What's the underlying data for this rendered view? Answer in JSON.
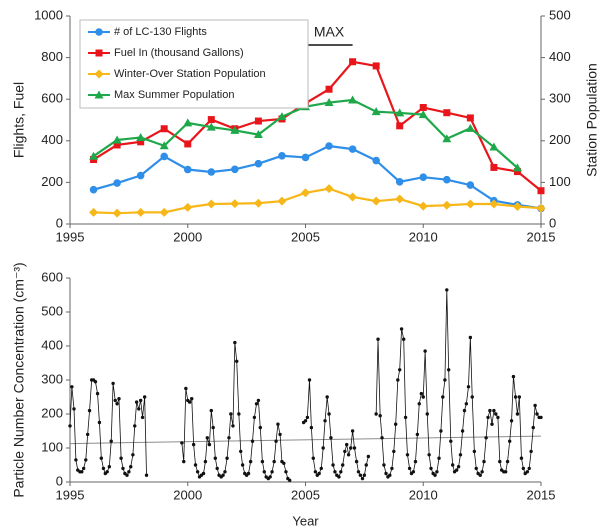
{
  "chart_data": [
    {
      "type": "line",
      "x": [
        1996,
        1997,
        1998,
        1999,
        2000,
        2001,
        2002,
        2003,
        2004,
        2005,
        2006,
        2007,
        2008,
        2009,
        2010,
        2011,
        2012,
        2013,
        2014,
        2015
      ],
      "xlim": [
        1995,
        2015
      ],
      "xticks": [
        1995,
        2000,
        2005,
        2010,
        2015
      ],
      "ylim": [
        0,
        1000
      ],
      "yticks": [
        0,
        200,
        400,
        600,
        800,
        1000
      ],
      "y2lim": [
        0,
        500
      ],
      "y2ticks": [
        0,
        100,
        200,
        300,
        400,
        500
      ],
      "ylabel": "Flights, Fuel",
      "y2label": "Station Population",
      "legend": "upper left",
      "annotations": [
        {
          "text": "MAX",
          "x": [
            2005,
            2007
          ]
        }
      ],
      "series": [
        {
          "name": "# of LC-130 Flights",
          "color": "#2e8ee8",
          "marker": "circle",
          "values": [
            165,
            197,
            233,
            325,
            262,
            250,
            263,
            290,
            328,
            320,
            375,
            360,
            305,
            203,
            225,
            213,
            187,
            112,
            92,
            75
          ]
        },
        {
          "name": "Fuel In (thousand Gallons)",
          "color": "#e8161b",
          "marker": "square",
          "values": [
            310,
            380,
            395,
            458,
            385,
            502,
            458,
            495,
            505,
            580,
            648,
            780,
            760,
            472,
            560,
            535,
            510,
            272,
            252,
            160
          ]
        },
        {
          "name": "Winter-Over Station Population",
          "color": "#f7b718",
          "marker": "diamond",
          "axis": "y2",
          "values": [
            28,
            26,
            28,
            28,
            40,
            48,
            49,
            50,
            55,
            75,
            85,
            65,
            55,
            60,
            43,
            45,
            48,
            48,
            42,
            38
          ]
        },
        {
          "name": "Max Summer Population",
          "color": "#1ea84a",
          "marker": "triangle",
          "axis": "y2",
          "values": [
            163,
            202,
            208,
            188,
            243,
            233,
            225,
            215,
            258,
            282,
            292,
            298,
            270,
            267,
            263,
            205,
            230,
            185,
            135,
            null
          ]
        }
      ]
    },
    {
      "type": "line",
      "xlim": [
        1995,
        2015
      ],
      "xticks": [
        1995,
        2000,
        2005,
        2010,
        2015
      ],
      "ylim": [
        0,
        600
      ],
      "yticks": [
        0,
        100,
        200,
        300,
        400,
        500,
        600
      ],
      "xlabel": "Year",
      "ylabel": "Particle Number Concentration (cm⁻³)",
      "x": [
        1995,
        1995.08,
        1995.17,
        1995.25,
        1995.33,
        1995.42,
        1995.5,
        1995.58,
        1995.67,
        1995.75,
        1995.83,
        1995.92,
        1996,
        1996.08,
        1996.17,
        1996.25,
        1996.33,
        1996.42,
        1996.5,
        1996.58,
        1996.67,
        1996.75,
        1996.83,
        1996.92,
        1997,
        1997.08,
        1997.17,
        1997.25,
        1997.33,
        1997.42,
        1997.5,
        1997.58,
        1997.67,
        1997.75,
        1997.83,
        1997.92,
        1998,
        1998.08,
        1998.17,
        1998.25,
        1998.33,
        1998.42,
        1998.5,
        1998.58,
        1998.67,
        1998.75,
        1998.83,
        1998.92,
        1999,
        1999.08,
        1999.17,
        1999.25,
        1999.33,
        1999.42,
        1999.5,
        1999.58,
        1999.67,
        1999.75,
        1999.83,
        1999.92,
        2000,
        2000.08,
        2000.17,
        2000.25,
        2000.33,
        2000.42,
        2000.5,
        2000.58,
        2000.67,
        2000.75,
        2000.83,
        2000.92,
        2001,
        2001.08,
        2001.17,
        2001.25,
        2001.33,
        2001.42,
        2001.5,
        2001.58,
        2001.67,
        2001.75,
        2001.83,
        2001.92,
        2002,
        2002.08,
        2002.17,
        2002.25,
        2002.33,
        2002.42,
        2002.5,
        2002.58,
        2002.67,
        2002.75,
        2002.83,
        2002.92,
        2003,
        2003.08,
        2003.17,
        2003.25,
        2003.33,
        2003.42,
        2003.5,
        2003.58,
        2003.67,
        2003.75,
        2003.83,
        2003.92,
        2004,
        2004.08,
        2004.17,
        2004.25,
        2004.33,
        2004.42,
        2004.5,
        2004.58,
        2004.67,
        2004.75,
        2004.83,
        2004.92,
        2005,
        2005.08,
        2005.17,
        2005.25,
        2005.33,
        2005.42,
        2005.5,
        2005.58,
        2005.67,
        2005.75,
        2005.83,
        2005.92,
        2006,
        2006.08,
        2006.17,
        2006.25,
        2006.33,
        2006.42,
        2006.5,
        2006.58,
        2006.67,
        2006.75,
        2006.83,
        2006.92,
        2007,
        2007.08,
        2007.17,
        2007.25,
        2007.33,
        2007.42,
        2007.5,
        2007.58,
        2007.67,
        2007.75,
        2007.83,
        2007.92,
        2008,
        2008.08,
        2008.17,
        2008.25,
        2008.33,
        2008.42,
        2008.5,
        2008.58,
        2008.67,
        2008.75,
        2008.83,
        2008.92,
        2009,
        2009.08,
        2009.17,
        2009.25,
        2009.33,
        2009.42,
        2009.5,
        2009.58,
        2009.67,
        2009.75,
        2009.83,
        2009.92,
        2010,
        2010.08,
        2010.17,
        2010.25,
        2010.33,
        2010.42,
        2010.5,
        2010.58,
        2010.67,
        2010.75,
        2010.83,
        2010.92,
        2011,
        2011.08,
        2011.17,
        2011.25,
        2011.33,
        2011.42,
        2011.5,
        2011.58,
        2011.67,
        2011.75,
        2011.83,
        2011.92,
        2012,
        2012.08,
        2012.17,
        2012.25,
        2012.33,
        2012.42,
        2012.5,
        2012.58,
        2012.67,
        2012.75,
        2012.83,
        2012.92,
        2013,
        2013.08,
        2013.17,
        2013.25,
        2013.33,
        2013.42,
        2013.5,
        2013.58,
        2013.67,
        2013.75,
        2013.83,
        2013.92,
        2014,
        2014.08,
        2014.17,
        2014.25,
        2014.33,
        2014.42,
        2014.5,
        2014.58,
        2014.67,
        2014.75,
        2014.83,
        2014.92,
        2015
      ],
      "series": [
        {
          "color": "#111111",
          "marker": "dot",
          "values": [
            165,
            280,
            215,
            65,
            35,
            30,
            30,
            40,
            65,
            140,
            210,
            300,
            300,
            295,
            260,
            175,
            70,
            40,
            25,
            30,
            45,
            120,
            290,
            240,
            230,
            245,
            70,
            40,
            25,
            20,
            30,
            45,
            80,
            165,
            235,
            215,
            240,
            190,
            250,
            20,
            null,
            null,
            null,
            null,
            null,
            null,
            null,
            null,
            null,
            null,
            null,
            null,
            null,
            null,
            null,
            null,
            null,
            115,
            60,
            275,
            240,
            235,
            245,
            110,
            50,
            30,
            15,
            20,
            25,
            60,
            130,
            110,
            210,
            160,
            70,
            40,
            20,
            15,
            20,
            30,
            70,
            130,
            200,
            165,
            410,
            355,
            200,
            90,
            50,
            25,
            20,
            25,
            60,
            120,
            190,
            230,
            240,
            160,
            60,
            30,
            15,
            10,
            15,
            30,
            60,
            120,
            170,
            140,
            60,
            55,
            30,
            10,
            5,
            null,
            null,
            null,
            null,
            null,
            null,
            175,
            180,
            190,
            300,
            160,
            70,
            30,
            20,
            25,
            40,
            100,
            180,
            250,
            200,
            130,
            50,
            30,
            20,
            15,
            30,
            50,
            90,
            110,
            80,
            100,
            150,
            100,
            60,
            30,
            20,
            10,
            20,
            50,
            75,
            null,
            null,
            null,
            200,
            420,
            195,
            130,
            50,
            25,
            15,
            20,
            40,
            90,
            170,
            300,
            330,
            450,
            420,
            190,
            80,
            40,
            25,
            30,
            60,
            140,
            230,
            260,
            250,
            385,
            200,
            80,
            40,
            25,
            20,
            30,
            70,
            150,
            250,
            300,
            565,
            330,
            120,
            50,
            30,
            35,
            45,
            80,
            150,
            210,
            230,
            280,
            425,
            250,
            90,
            40,
            25,
            20,
            30,
            60,
            130,
            190,
            210,
            170,
            210,
            200,
            190,
            60,
            35,
            30,
            30,
            60,
            120,
            180,
            310,
            250,
            200,
            250,
            70,
            40,
            25,
            30,
            40,
            90,
            160,
            225,
            200,
            190,
            190
          ]
        }
      ],
      "trendline": {
        "x": [
          1995,
          2015
        ],
        "values": [
          113,
          135
        ],
        "color": "#8c8c8c"
      }
    }
  ]
}
